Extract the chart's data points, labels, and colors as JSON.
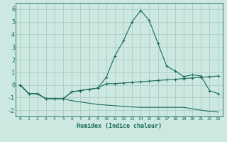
{
  "title": "",
  "xlabel": "Humidex (Indice chaleur)",
  "background_color": "#cce8e0",
  "grid_color": "#aaccc4",
  "line_color": "#1a6b5a",
  "x_values": [
    0,
    1,
    2,
    3,
    4,
    5,
    6,
    7,
    8,
    9,
    10,
    11,
    12,
    13,
    14,
    15,
    16,
    17,
    18,
    19,
    20,
    21,
    22,
    23
  ],
  "line1": [
    0.0,
    -0.7,
    -0.7,
    -1.1,
    -1.1,
    -1.1,
    -0.55,
    -0.45,
    -0.35,
    -0.25,
    0.6,
    2.3,
    3.5,
    5.0,
    5.9,
    5.1,
    3.3,
    1.5,
    1.1,
    0.65,
    0.8,
    0.7,
    -0.45,
    -0.7
  ],
  "line2": [
    0.0,
    -0.7,
    -0.7,
    -1.1,
    -1.1,
    -1.1,
    -0.55,
    -0.45,
    -0.35,
    -0.25,
    0.1,
    0.1,
    0.15,
    0.2,
    0.25,
    0.3,
    0.35,
    0.4,
    0.45,
    0.5,
    0.55,
    0.6,
    0.65,
    0.7
  ],
  "line3": [
    0.0,
    -0.7,
    -0.7,
    -1.1,
    -1.1,
    -1.1,
    -1.25,
    -1.35,
    -1.45,
    -1.55,
    -1.6,
    -1.65,
    -1.7,
    -1.75,
    -1.78,
    -1.78,
    -1.78,
    -1.78,
    -1.78,
    -1.78,
    -1.9,
    -2.0,
    -2.1,
    -2.15
  ],
  "xlim": [
    -0.5,
    23.5
  ],
  "ylim": [
    -2.5,
    6.5
  ],
  "yticks": [
    -2,
    -1,
    0,
    1,
    2,
    3,
    4,
    5,
    6
  ],
  "xticks": [
    0,
    1,
    2,
    3,
    4,
    5,
    6,
    7,
    8,
    9,
    10,
    11,
    12,
    13,
    14,
    15,
    16,
    17,
    18,
    19,
    20,
    21,
    22,
    23
  ]
}
